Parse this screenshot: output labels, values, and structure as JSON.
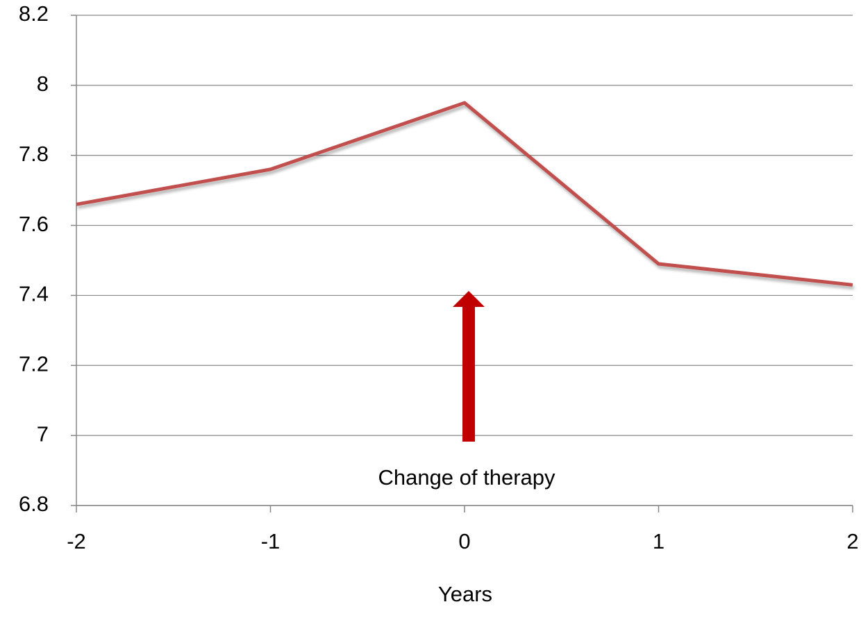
{
  "chart_data": {
    "type": "line",
    "x": [
      -2,
      -1,
      0,
      1,
      2
    ],
    "series": [
      {
        "color": "#c0504d",
        "values": [
          7.66,
          7.76,
          7.95,
          7.49,
          7.43
        ]
      }
    ],
    "xlim": [
      -2,
      2
    ],
    "xticks": [
      -2,
      -1,
      0,
      1,
      2
    ],
    "ylim": [
      6.8,
      8.2
    ],
    "yticks": [
      6.8,
      7,
      7.2,
      7.4,
      7.6,
      7.8,
      8,
      8.2
    ],
    "grid": true,
    "xlabel": "Years",
    "annotation": "Change of therapy"
  }
}
